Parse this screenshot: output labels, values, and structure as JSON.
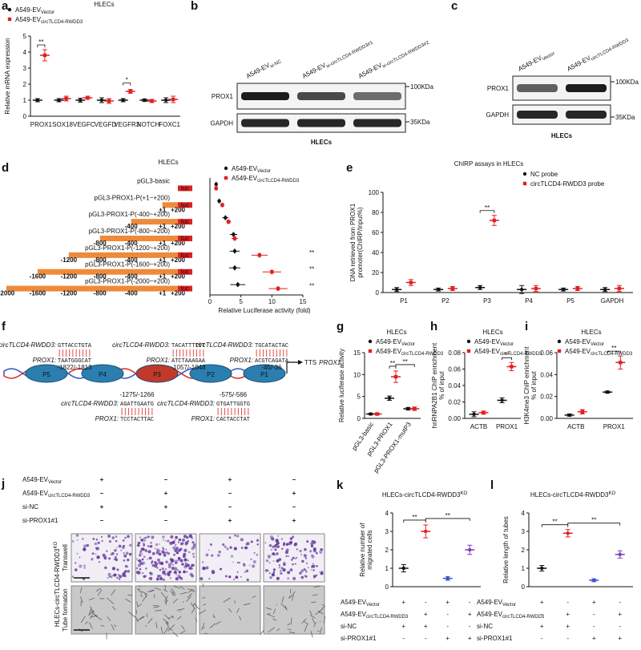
{
  "panel_letters": [
    "a",
    "b",
    "c",
    "d",
    "e",
    "f",
    "g",
    "h",
    "i",
    "j",
    "k",
    "l"
  ],
  "chart_data": [
    {
      "type": "dot",
      "title": "HLECs",
      "ylabel": "Relative mRNA expression",
      "categories": [
        "PROX1",
        "SOX18",
        "VEGFC",
        "VEGFD",
        "VEGFR3",
        "NOTCH",
        "FOXC1"
      ],
      "series": [
        {
          "name": "A549-EV",
          "subscript": "Vector",
          "color": "#111111",
          "marker": "circle",
          "values": [
            1,
            1,
            1,
            1,
            1,
            1,
            1
          ],
          "errors": [
            0.1,
            0.1,
            0.12,
            0.15,
            0.1,
            0.08,
            0.15
          ]
        },
        {
          "name": "A549-EV",
          "subscript": "circTLCD4-RWDD3",
          "color": "#e02020",
          "marker": "square",
          "values": [
            3.8,
            1.1,
            1.15,
            0.95,
            1.55,
            0.95,
            1.05
          ],
          "errors": [
            0.35,
            0.15,
            0.1,
            0.15,
            0.12,
            0.1,
            0.2
          ]
        }
      ],
      "ylim": [
        0,
        5
      ],
      "yticks": [
        0,
        1,
        2,
        3,
        4,
        5
      ],
      "annotations": [
        {
          "text": "**",
          "from": [
            0,
            0
          ],
          "to": [
            0,
            1
          ]
        },
        {
          "text": "*",
          "from": [
            4,
            0
          ],
          "to": [
            4,
            1
          ]
        }
      ]
    },
    {
      "type": "hdot",
      "title": "HLECs",
      "xlabel": "Relative Luciferase activity (fold)",
      "categories": [
        "pGL3-basic",
        "pGL3-PROX1-P(+1~+200)",
        "pGL3-PROX1-P(-400~+200)",
        "pGL3-PROX1-P(-800~+200)",
        "pGL3-PROX1-P(-1200~+200)",
        "pGL3-PROX1-P(-1600~+200)",
        "pGL3-PROX1-P(-2000~+200)"
      ],
      "construct_starts": [
        null,
        1,
        -400,
        -800,
        -1200,
        -1600,
        -2000
      ],
      "construct_lim": [
        -2000,
        200
      ],
      "construct_ticks": [
        -2000,
        -1600,
        -1200,
        -800,
        -400,
        {
          "value": 1,
          "label": "+1"
        },
        {
          "value": 200,
          "label": "+200"
        }
      ],
      "luc_label": "luc",
      "series": [
        {
          "name": "A549-EV",
          "subscript": "Vector",
          "color": "#111111",
          "marker": "circle",
          "values": [
            1,
            1.5,
            2.5,
            3.8,
            4,
            4,
            4.5
          ],
          "errors": [
            0.1,
            0.3,
            0.5,
            0.6,
            0.8,
            0.9,
            1.2
          ]
        },
        {
          "name": "A549-EV",
          "subscript": "circTLCD4-RWDD3",
          "color": "#e02020",
          "marker": "square",
          "values": [
            1,
            2,
            3,
            4,
            8,
            10,
            11
          ],
          "errors": [
            0.1,
            0.3,
            0.4,
            0.5,
            1.3,
            1.5,
            1.5
          ]
        }
      ],
      "xlim": [
        0,
        15
      ],
      "xticks": [
        0,
        5,
        10,
        15
      ],
      "annotations": [
        {
          "text": "**",
          "row": 4
        },
        {
          "text": "**",
          "row": 5
        },
        {
          "text": "**",
          "row": 6
        }
      ]
    },
    {
      "type": "dot",
      "title": "ChIRP assays in HLECs",
      "ylabel": [
        "DNA retrieved from PROX1",
        "promoter(ChIRP/Input%)"
      ],
      "categories": [
        "P1",
        "P2",
        "P3",
        "P4",
        "P5",
        "GAPDH"
      ],
      "series": [
        {
          "name": "NC probe",
          "color": "#111111",
          "marker": "circle",
          "values": [
            3,
            3,
            5,
            3,
            3,
            3
          ],
          "errors": [
            2,
            1.5,
            2,
            4,
            1.5,
            2
          ]
        },
        {
          "name": "circTLCD4-RWDD3 probe",
          "color": "#e02020",
          "marker": "square",
          "values": [
            10,
            4,
            72,
            4,
            4,
            4
          ],
          "errors": [
            3,
            2,
            5,
            3,
            2,
            3
          ]
        }
      ],
      "ylim": [
        0,
        100
      ],
      "yticks": [
        0,
        20,
        40,
        60,
        80,
        100
      ],
      "annotations": [
        {
          "text": "**",
          "from": [
            2,
            0
          ],
          "to": [
            2,
            1
          ]
        }
      ]
    },
    {
      "type": "dot",
      "title": "HLECs",
      "ylabel": "Relative luciferase activity",
      "categories": [
        "pGL3-basic",
        "pGL3-PROX1",
        "pGL3-PROX1-mutP3"
      ],
      "series": [
        {
          "name": "A549-EV",
          "subscript": "Vector",
          "color": "#111111",
          "marker": "circle",
          "values": [
            1,
            4.6,
            2.2
          ],
          "errors": [
            0.2,
            0.5,
            0.3
          ]
        },
        {
          "name": "A549-EV",
          "subscript": "circTLCD4-RWDD3",
          "color": "#e02020",
          "marker": "square",
          "values": [
            1,
            9.5,
            2.2
          ],
          "errors": [
            0.2,
            1.3,
            0.4
          ]
        }
      ],
      "ylim": [
        0,
        15
      ],
      "yticks": [
        0,
        5,
        10,
        15
      ],
      "annotations": [
        {
          "text": "**",
          "from": [
            1,
            0
          ],
          "to": [
            1,
            1
          ]
        },
        {
          "text": "**",
          "from": [
            1,
            1
          ],
          "to": [
            2,
            1
          ]
        }
      ]
    },
    {
      "type": "dot",
      "title": "HLECs",
      "ylabel": [
        "hnRNPA2B1 ChIP enrichment",
        "% of input"
      ],
      "categories": [
        "ACTB",
        "PROX1"
      ],
      "series": [
        {
          "name": "A549-EV",
          "subscript": "Vector",
          "color": "#111111",
          "marker": "circle",
          "values": [
            0.005,
            0.022
          ],
          "errors": [
            0.003,
            0.003
          ]
        },
        {
          "name": "A549-EV",
          "subscript": "circTLCD4-RWDD3",
          "color": "#e02020",
          "marker": "square",
          "values": [
            0.007,
            0.063
          ],
          "errors": [
            0.002,
            0.005
          ]
        }
      ],
      "ylim": [
        0,
        0.08
      ],
      "yticks": [
        {
          "value": 0,
          "label": "0.00"
        },
        0.02,
        0.04,
        0.06,
        0.08
      ],
      "annotations": [
        {
          "text": "**",
          "from": [
            1,
            0
          ],
          "to": [
            1,
            1
          ]
        }
      ]
    },
    {
      "type": "dot",
      "title": "HLECs",
      "ylabel": [
        "H3K4me3 ChIP enrichment",
        "% of input"
      ],
      "categories": [
        "ACTB",
        "PROX1"
      ],
      "series": [
        {
          "name": "A549-EV",
          "subscript": "Vector",
          "color": "#111111",
          "marker": "circle",
          "values": [
            0.003,
            0.024
          ],
          "errors": [
            0.001,
            0.001
          ]
        },
        {
          "name": "A549-EV",
          "subscript": "circTLCD4-RWDD3",
          "color": "#e02020",
          "marker": "square",
          "values": [
            0.006,
            0.051
          ],
          "errors": [
            0.002,
            0.006
          ]
        }
      ],
      "ylim": [
        0,
        0.06
      ],
      "yticks": [
        {
          "value": 0,
          "label": "0.00"
        },
        0.02,
        0.04,
        0.06
      ],
      "annotations": [
        {
          "text": "**",
          "from": [
            1,
            0
          ],
          "to": [
            1,
            1
          ]
        }
      ]
    },
    {
      "type": "dot",
      "title": "HLECs-circTLCD4-RWDD3",
      "title_sup": "KO",
      "ylabel": [
        "Relative number of",
        "migrated cells"
      ],
      "series": [
        {
          "colors": [
            "#111111",
            "#e02020",
            "#3a52c8",
            "#7b3fb0"
          ],
          "values": [
            1,
            3,
            0.45,
            2
          ],
          "errors": [
            0.2,
            0.35,
            0.1,
            0.25
          ]
        }
      ],
      "ylim": [
        0,
        4
      ],
      "yticks": [
        0,
        1,
        2,
        3,
        4
      ],
      "annotations": [
        {
          "text": "**",
          "from": [
            0,
            0
          ],
          "to": [
            1,
            0
          ]
        },
        {
          "text": "**",
          "from": [
            1,
            0
          ],
          "to": [
            3,
            0
          ]
        }
      ],
      "conditions": [
        {
          "label": "A549-EV",
          "subscript": "Vector",
          "signs": [
            "+",
            "-",
            "+",
            "-"
          ]
        },
        {
          "label": "A549-EV",
          "subscript": "circTLCD4-RWDD3",
          "signs": [
            "-",
            "+",
            "-",
            "+"
          ]
        },
        {
          "label": "si-NC",
          "signs": [
            "+",
            "+",
            "-",
            "-"
          ]
        },
        {
          "label": "si-PROX1#1",
          "signs": [
            "-",
            "-",
            "+",
            "+"
          ]
        }
      ]
    },
    {
      "type": "dot",
      "title": "HLECs-circTLCD4-RWDD3",
      "title_sup": "KO",
      "ylabel": "Relative length of tubes",
      "series": [
        {
          "colors": [
            "#111111",
            "#e02020",
            "#3a52c8",
            "#7b3fb0"
          ],
          "values": [
            1,
            2.9,
            0.35,
            1.75
          ],
          "errors": [
            0.15,
            0.2,
            0.08,
            0.2
          ]
        }
      ],
      "ylim": [
        0,
        4
      ],
      "yticks": [
        0,
        1,
        2,
        3,
        4
      ],
      "annotations": [
        {
          "text": "**",
          "from": [
            0,
            0
          ],
          "to": [
            1,
            0
          ]
        },
        {
          "text": "**",
          "from": [
            1,
            0
          ],
          "to": [
            3,
            0
          ]
        }
      ],
      "conditions": [
        {
          "label": "A549-EV",
          "subscript": "Vector",
          "signs": [
            "+",
            "-",
            "+",
            "-"
          ]
        },
        {
          "label": "A549-EV",
          "subscript": "circTLCD4-RWDD3",
          "signs": [
            "-",
            "+",
            "-",
            "+"
          ]
        },
        {
          "label": "si-NC",
          "signs": [
            "+",
            "+",
            "-",
            "-"
          ]
        },
        {
          "label": "si-PROX1#1",
          "signs": [
            "-",
            "-",
            "+",
            "+"
          ]
        }
      ]
    }
  ],
  "blot_b": {
    "lanes": [
      {
        "name": "A549-EV",
        "subscript": "si-NC"
      },
      {
        "name": "A549-EV",
        "subscript": "si-circTLCD4-RWDD3#1"
      },
      {
        "name": "A549-EV",
        "subscript": "si-circTLCD4-RWDD3#2"
      }
    ],
    "rows": [
      "PROX1",
      "GAPDH"
    ],
    "markers": [
      "100KDa",
      "35KDa"
    ],
    "footer": "HLECs"
  },
  "blot_c": {
    "lanes": [
      {
        "name": "A549-EV",
        "subscript": "Vector"
      },
      {
        "name": "A549-EV",
        "subscript": "circTLCD4-RWDD3"
      }
    ],
    "rows": [
      "PROX1",
      "GAPDH"
    ],
    "markers": [
      "100KDa",
      "35KDa"
    ],
    "footer": "HLECs"
  },
  "diagram_f": {
    "circ_prefix": "circTLCD4-RWDD3:",
    "prox_prefix": "PROX1:",
    "promoters": [
      "P5",
      "P4",
      "P3",
      "P2",
      "P1"
    ],
    "tss": "TTS",
    "tss_gene": "PROX1",
    "sites": [
      {
        "circ": "GTTACCTGTA",
        "prox": "TAATGGGCAT",
        "pos": "-1822/-1813"
      },
      {
        "circ": "TACATTTTCT",
        "prox": "ATCTAAAGAA",
        "pos": "-1057/-1048"
      },
      {
        "circ": "TGCATACTAC",
        "prox": "ACGTCAGATA",
        "pos": "-45/-36"
      },
      {
        "circ": "AGATTGAATG",
        "prox": "TCCTACTTAC",
        "pos": "-1275/-1266"
      },
      {
        "circ": "GTGATTGGTG",
        "prox": "CACTACCTAT",
        "pos": "-575/-566"
      }
    ]
  },
  "panel_j": {
    "conditions": [
      {
        "label": "A549-EV",
        "subscript": "Vector",
        "signs": [
          "+",
          "–",
          "+",
          "–"
        ]
      },
      {
        "label": "A549-EV",
        "subscript": "circTLCD4-RWDD3",
        "signs": [
          "–",
          "+",
          "–",
          "+"
        ]
      },
      {
        "label": "si-NC",
        "signs": [
          "+",
          "+",
          "–",
          "–"
        ]
      },
      {
        "label": "si-PROX1#1",
        "signs": [
          "–",
          "–",
          "+",
          "+"
        ]
      }
    ],
    "rows": [
      "Transwell",
      "Tube formation"
    ],
    "side_label": "HLECs-circTLCD4-RWDD3",
    "side_sup": "KO"
  }
}
